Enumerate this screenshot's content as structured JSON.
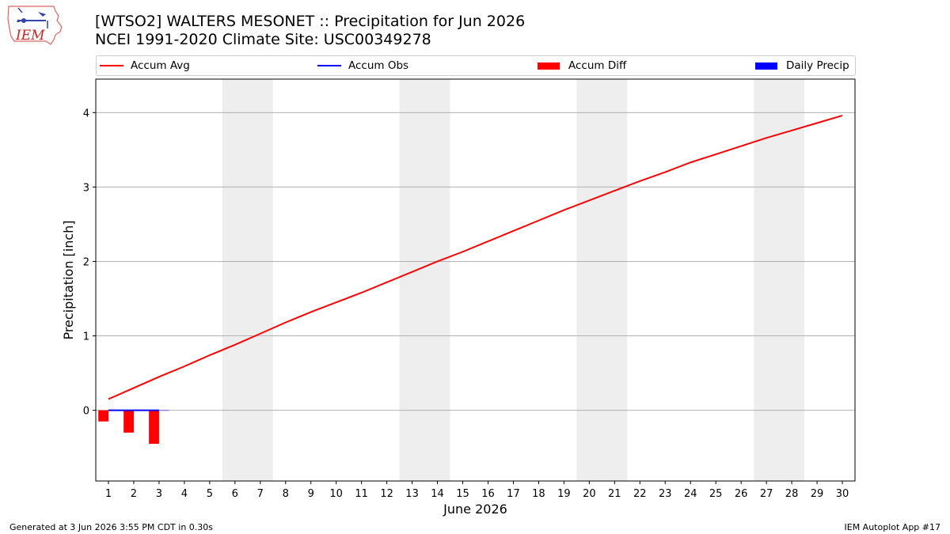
{
  "header": {
    "logo_text": "IEM",
    "title_line1": "[WTSO2] WALTERS MESONET :: Precipitation for Jun 2026",
    "title_line2": "NCEI 1991-2020 Climate Site: USC00349278"
  },
  "legend": {
    "items": [
      {
        "label": "Accum Avg",
        "kind": "line",
        "color": "#ff0000"
      },
      {
        "label": "Accum Obs",
        "kind": "line",
        "color": "#0000ff"
      },
      {
        "label": "Accum Diff",
        "kind": "rect",
        "color": "#ff0000"
      },
      {
        "label": "Daily Precip",
        "kind": "rect",
        "color": "#0000ff"
      }
    ]
  },
  "chart_data": {
    "type": "line",
    "xlabel": "June 2026",
    "ylabel": "Precipitation [inch]",
    "xlim": [
      0.5,
      30.5
    ],
    "ylim": [
      -0.95,
      4.45
    ],
    "yticks": [
      0,
      1,
      2,
      3,
      4
    ],
    "xticks": [
      1,
      2,
      3,
      4,
      5,
      6,
      7,
      8,
      9,
      10,
      11,
      12,
      13,
      14,
      15,
      16,
      17,
      18,
      19,
      20,
      21,
      22,
      23,
      24,
      25,
      26,
      27,
      28,
      29,
      30
    ],
    "grid": "horizontal",
    "weekend_shading": [
      [
        5.5,
        7.5
      ],
      [
        12.5,
        14.5
      ],
      [
        19.5,
        21.5
      ],
      [
        26.5,
        28.5
      ]
    ],
    "colors": {
      "avg": "#ff0000",
      "obs": "#0000ff",
      "diff": "#ff0000",
      "daily": "#0000ff",
      "weekend": "#eeeeee"
    },
    "series": [
      {
        "name": "Accum Avg",
        "kind": "line",
        "x": [
          1,
          2,
          3,
          4,
          5,
          6,
          7,
          8,
          9,
          10,
          11,
          12,
          13,
          14,
          15,
          16,
          17,
          18,
          19,
          20,
          21,
          22,
          23,
          24,
          25,
          26,
          27,
          28,
          29,
          30
        ],
        "values": [
          0.15,
          0.3,
          0.45,
          0.59,
          0.74,
          0.88,
          1.03,
          1.18,
          1.32,
          1.45,
          1.58,
          1.72,
          1.86,
          2.0,
          2.13,
          2.27,
          2.41,
          2.55,
          2.69,
          2.82,
          2.95,
          3.08,
          3.2,
          3.33,
          3.44,
          3.55,
          3.66,
          3.76,
          3.86,
          3.96
        ]
      },
      {
        "name": "Accum Obs",
        "kind": "line",
        "x": [
          1,
          2,
          3
        ],
        "values": [
          0.0,
          0.0,
          0.0
        ]
      },
      {
        "name": "Accum Diff",
        "kind": "bar",
        "x": [
          1,
          2,
          3
        ],
        "values": [
          -0.15,
          -0.3,
          -0.45
        ]
      },
      {
        "name": "Daily Precip",
        "kind": "bar",
        "x": [
          1,
          2,
          3
        ],
        "values": [
          0.0,
          0.0,
          0.0
        ]
      }
    ]
  },
  "footer": {
    "left": "Generated at 3 Jun 2026 3:55 PM CDT in 0.30s",
    "right": "IEM Autoplot App #17"
  }
}
